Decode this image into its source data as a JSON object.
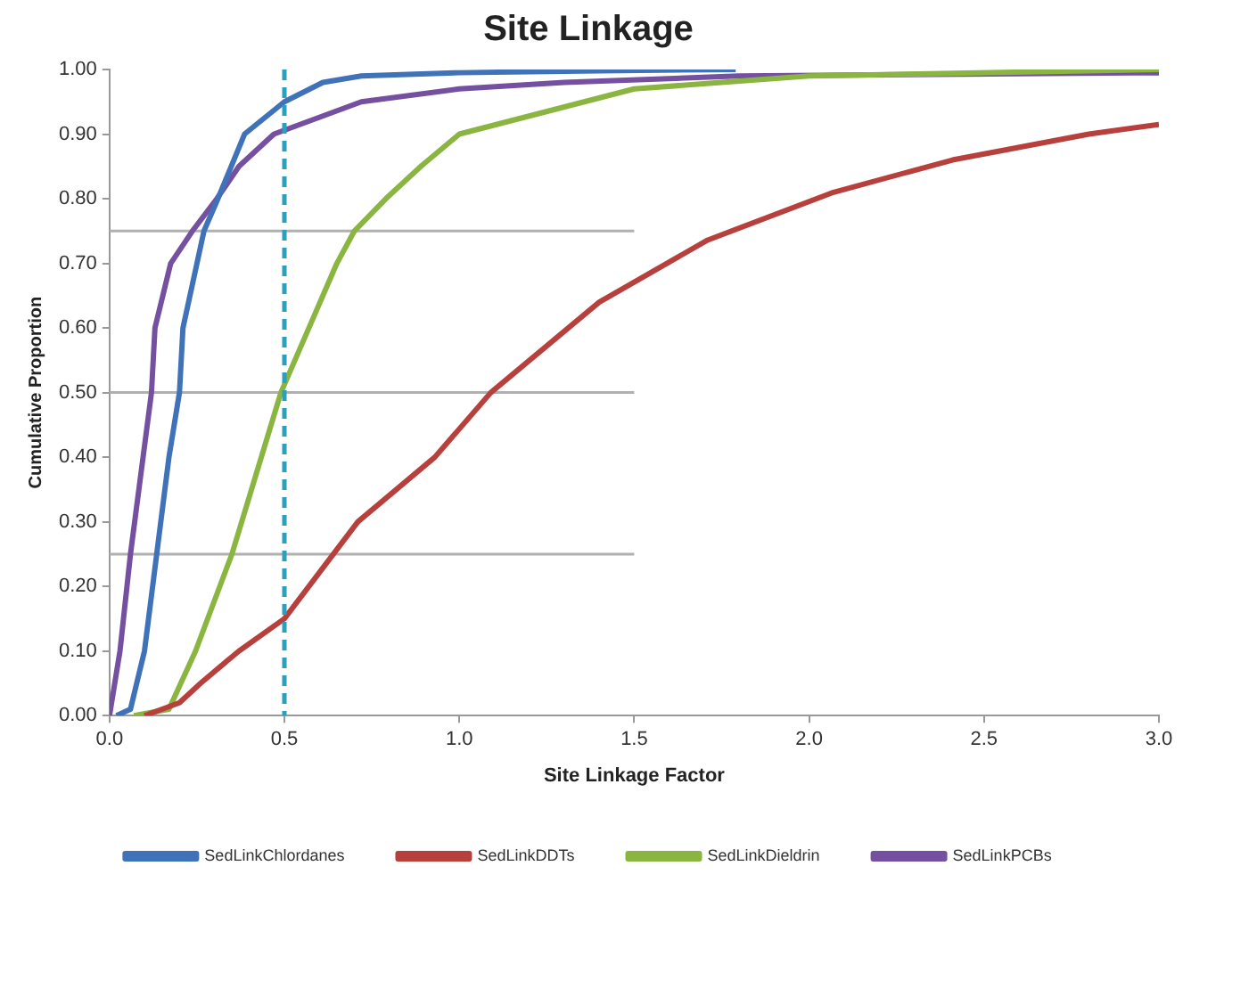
{
  "chart_data": {
    "type": "line",
    "title": "Site Linkage",
    "xlabel": "Site Linkage Factor",
    "ylabel": "Cumulative Proportion",
    "xlim": [
      0,
      3
    ],
    "xticks": [
      {
        "value": 0,
        "label": "0.0"
      },
      {
        "value": 0.5,
        "label": "0.5"
      },
      {
        "value": 1,
        "label": "1.0"
      },
      {
        "value": 1.5,
        "label": "1.5"
      },
      {
        "value": 2,
        "label": "2.0"
      },
      {
        "value": 2.5,
        "label": "2.5"
      },
      {
        "value": 3,
        "label": "3.0"
      }
    ],
    "ylim": [
      0,
      1
    ],
    "yticks": [
      {
        "value": 0,
        "label": "0.00"
      },
      {
        "value": 0.1,
        "label": "0.10"
      },
      {
        "value": 0.2,
        "label": "0.20"
      },
      {
        "value": 0.3,
        "label": "0.30"
      },
      {
        "value": 0.4,
        "label": "0.40"
      },
      {
        "value": 0.5,
        "label": "0.50"
      },
      {
        "value": 0.6,
        "label": "0.60"
      },
      {
        "value": 0.7,
        "label": "0.70"
      },
      {
        "value": 0.8,
        "label": "0.80"
      },
      {
        "value": 0.9,
        "label": "0.90"
      },
      {
        "value": 1,
        "label": "1.00"
      }
    ],
    "grid": false,
    "legend": "bottom",
    "marker": "none",
    "line_style": "solid",
    "series": [
      {
        "name": "SedLinkChlordanes",
        "color": "#3f72b8",
        "x": [
          0.02,
          0.06,
          0.1,
          0.135,
          0.17,
          0.2,
          0.21,
          0.27,
          0.31,
          0.386,
          0.5,
          0.61,
          0.72,
          1.0,
          1.4,
          1.79
        ],
        "values": [
          0,
          0.01,
          0.1,
          0.25,
          0.4,
          0.5,
          0.6,
          0.75,
          0.8,
          0.9,
          0.95,
          0.98,
          0.99,
          0.995,
          0.998,
          1.0
        ]
      },
      {
        "name": "SedLinkDDTs",
        "color": "#b8403c",
        "x": [
          0.1,
          0.2,
          0.26,
          0.37,
          0.5,
          0.64,
          0.71,
          0.93,
          1.09,
          1.4,
          1.71,
          2.07,
          2.41,
          2.8,
          3.0
        ],
        "values": [
          0,
          0.02,
          0.05,
          0.1,
          0.15,
          0.25,
          0.3,
          0.4,
          0.5,
          0.64,
          0.736,
          0.81,
          0.86,
          0.9,
          0.915
        ]
      },
      {
        "name": "SedLinkDieldrin",
        "color": "#8ab540",
        "x": [
          0.07,
          0.17,
          0.246,
          0.35,
          0.49,
          0.57,
          0.65,
          0.7,
          0.79,
          0.89,
          1.0,
          1.5,
          2.0,
          3.0
        ],
        "values": [
          0,
          0.01,
          0.1,
          0.25,
          0.5,
          0.6,
          0.7,
          0.75,
          0.8,
          0.85,
          0.9,
          0.97,
          0.99,
          1.0
        ]
      },
      {
        "name": "SedLinkPCBs",
        "color": "#7550a0",
        "x": [
          0,
          0.03,
          0.06,
          0.12,
          0.13,
          0.175,
          0.237,
          0.307,
          0.37,
          0.47,
          0.72,
          1.0,
          1.3,
          1.8,
          3.0
        ],
        "values": [
          0,
          0.1,
          0.25,
          0.5,
          0.6,
          0.7,
          0.75,
          0.8,
          0.85,
          0.9,
          0.95,
          0.97,
          0.98,
          0.99,
          0.995
        ]
      },
      {
        "color": "#b0b0b0",
        "x": [
          0,
          1.5
        ],
        "values": [
          0.75,
          0.75
        ]
      },
      {
        "color": "#b0b0b0",
        "x": [
          0,
          1.5
        ],
        "values": [
          0.5,
          0.5
        ]
      },
      {
        "color": "#b0b0b0",
        "x": [
          0,
          1.5
        ],
        "values": [
          0.25,
          0.25
        ]
      }
    ],
    "ref_lines": [
      {
        "axis": "x",
        "value": 0.5,
        "color": "#2a9fbf",
        "line_style": "dashed"
      }
    ]
  }
}
